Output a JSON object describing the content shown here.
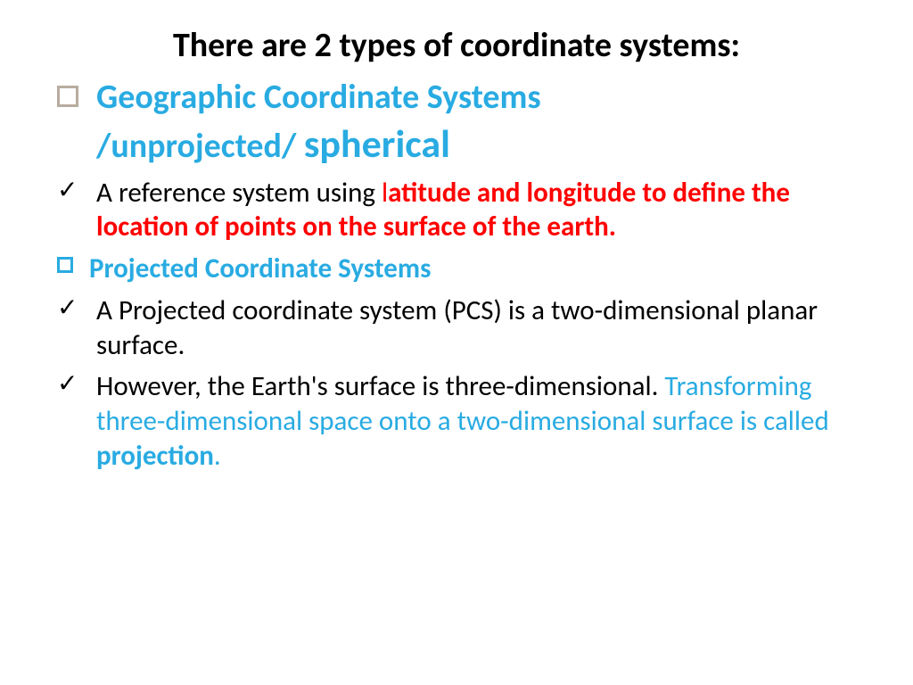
{
  "colors": {
    "black": "#000000",
    "cyan": "#29abe2",
    "red": "#ff0000",
    "bullet_outline": "#b8aca0",
    "bullet_outline_cyan": "#29abe2",
    "background": "#ffffff"
  },
  "typography": {
    "font_family": "Calibri, Arial, sans-serif",
    "title_fontsize": 38,
    "heading_fontsize": 38,
    "spherical_fontsize": 44,
    "body_fontsize": 31,
    "subhead_fontsize": 31
  },
  "title": "There are 2 types of coordinate systems:",
  "items": {
    "gcs": {
      "bullet_type": "square",
      "bullet_color": "#b8aca0",
      "line1": "Geographic Coordinate Systems",
      "line2a": "/unprojected/ ",
      "line2b": "spherical"
    },
    "gcs_desc": {
      "bullet_type": "check",
      "part1": "A reference system using ",
      "part_l": "l",
      "part2": "atitude and longitude to define the location of points on the surface of the earth."
    },
    "pcs": {
      "bullet_type": "square",
      "bullet_color": "#29abe2",
      "text": "Projected Coordinate Systems"
    },
    "pcs_desc1": {
      "bullet_type": "check",
      "text": "A Projected coordinate system (PCS) is a two-dimensional planar surface."
    },
    "pcs_desc2": {
      "bullet_type": "check",
      "part1": " However, the Earth's surface is three-dimensional. ",
      "part2": "Transforming three-dimensional space onto a two-dimensional surface is called ",
      "part3": "projection",
      "part4": "."
    }
  }
}
